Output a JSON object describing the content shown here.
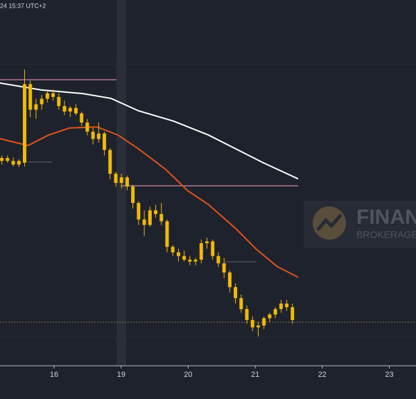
{
  "chart_data": {
    "type": "candlestick",
    "header_text": "24 15:37 UTC+2",
    "watermark": {
      "title": "FINAN",
      "subtitle": "BROKERAGE"
    },
    "xlim": [
      0.193,
      6.398
    ],
    "xticks": [
      {
        "value": 1,
        "label": "16"
      },
      {
        "value": 2,
        "label": "19"
      },
      {
        "value": 3,
        "label": "20"
      },
      {
        "value": 4,
        "label": "21"
      },
      {
        "value": 5,
        "label": "22"
      },
      {
        "value": 6,
        "label": "23"
      }
    ],
    "ylim": [
      0,
      100
    ],
    "color": "#f0b90b",
    "x": [
      0.22,
      0.305,
      0.39,
      0.475,
      0.56,
      0.645,
      0.73,
      0.815,
      0.9,
      0.985,
      1.07,
      1.155,
      1.24,
      1.325,
      1.41,
      1.495,
      1.58,
      1.665,
      1.75,
      1.835,
      1.92,
      2.005,
      2.09,
      2.175,
      2.26,
      2.345,
      2.43,
      2.515,
      2.6,
      2.685,
      2.77,
      2.855,
      2.94,
      3.025,
      3.11,
      3.195,
      3.28,
      3.365,
      3.45,
      3.535,
      3.62,
      3.705,
      3.79,
      3.875,
      3.96,
      4.045,
      4.13,
      4.215,
      4.3,
      4.385,
      4.47,
      4.555
    ],
    "open": [
      56,
      56.8,
      56,
      55,
      55.5,
      77,
      70,
      71.5,
      73,
      74.5,
      73.5,
      71,
      69.5,
      70.5,
      69,
      66.5,
      64,
      62,
      63.5,
      59,
      52.5,
      50,
      51.5,
      49,
      44.5,
      40,
      38.5,
      42.5,
      41.5,
      39.5,
      32.5,
      31,
      30,
      29,
      28.5,
      29,
      33.5,
      34,
      30,
      28,
      25.5,
      21.5,
      18.5,
      15.5,
      12.5,
      10.5,
      11,
      13,
      14,
      15.5,
      17,
      16
    ],
    "high": [
      57.5,
      57.5,
      57,
      56.5,
      81,
      78,
      73,
      74,
      75,
      75.5,
      74.5,
      72.5,
      71,
      71.5,
      69.5,
      67.5,
      65,
      66.5,
      64,
      59.5,
      53,
      52.5,
      52,
      49.5,
      45,
      42.5,
      43.5,
      44,
      44.5,
      40,
      33,
      32,
      31.5,
      30,
      29.5,
      34.5,
      35,
      34.5,
      31,
      29.5,
      26,
      22.5,
      19.5,
      16.5,
      13.5,
      12,
      13.5,
      14.5,
      16,
      18,
      18,
      17
    ],
    "low": [
      55,
      55.5,
      54.5,
      54.3,
      54.5,
      68,
      67.5,
      70,
      72,
      72.5,
      70,
      68.5,
      68,
      68.5,
      65.5,
      63,
      60.5,
      61,
      57.5,
      51,
      49,
      48.5,
      48,
      43,
      38.5,
      35.5,
      38,
      40.5,
      38.5,
      31,
      30,
      28.5,
      28.5,
      27.5,
      27.5,
      28,
      32,
      29,
      27,
      24,
      20,
      17,
      14.5,
      11.5,
      9.5,
      8,
      10,
      12,
      13,
      14.5,
      15,
      11.5
    ],
    "close": [
      56.8,
      56,
      55,
      56,
      77,
      70,
      71.5,
      73,
      74.5,
      73.5,
      71,
      69.5,
      70.5,
      69,
      66.5,
      64,
      62,
      63.5,
      59,
      52.5,
      50,
      51.5,
      49,
      44.5,
      40,
      38.5,
      42.5,
      41.5,
      39.5,
      32.5,
      31,
      30,
      29,
      28.5,
      29,
      33.5,
      34,
      30,
      28,
      25.5,
      21.5,
      18.5,
      15.5,
      12.5,
      10.5,
      11,
      13,
      14,
      15.5,
      17,
      16,
      12.5
    ],
    "lines": [
      {
        "color": "#ffffff",
        "x": [
          0.19,
          0.81,
          1.43,
          1.85,
          2.26,
          2.78,
          3.3,
          3.71,
          4.12,
          4.64
        ],
        "values": [
          77.3,
          75.4,
          74.4,
          73.1,
          69.7,
          66.9,
          63.1,
          59.3,
          55.5,
          51.1
        ]
      },
      {
        "color": "#e0541c",
        "x": [
          0.19,
          0.61,
          0.92,
          1.23,
          1.64,
          1.95,
          2.26,
          2.67,
          2.99,
          3.3,
          3.71,
          4.02,
          4.33,
          4.64
        ],
        "values": [
          62.1,
          60.2,
          63.1,
          65,
          65.3,
          63.1,
          59.3,
          53.6,
          47.9,
          44.1,
          37.5,
          31.8,
          27.1,
          24.2
        ]
      }
    ],
    "levels": [
      {
        "value": 78.2,
        "x": [
          0.19,
          1.93
        ],
        "color": "#b07a8c",
        "dashed": false
      },
      {
        "value": 49.2,
        "x": [
          2.0,
          4.64
        ],
        "color": "#b07a8c",
        "dashed": false
      },
      {
        "value": 55.7,
        "x": [
          0.61,
          0.97
        ],
        "color": "#4a4e5a",
        "dashed": false
      },
      {
        "value": 28.4,
        "x": [
          3.55,
          4.02
        ],
        "color": "#4a4e5a",
        "dashed": false
      },
      {
        "value": 11.9,
        "x": [
          0.193,
          6.398
        ],
        "color": "#8a7556",
        "dashed": true
      }
    ]
  }
}
